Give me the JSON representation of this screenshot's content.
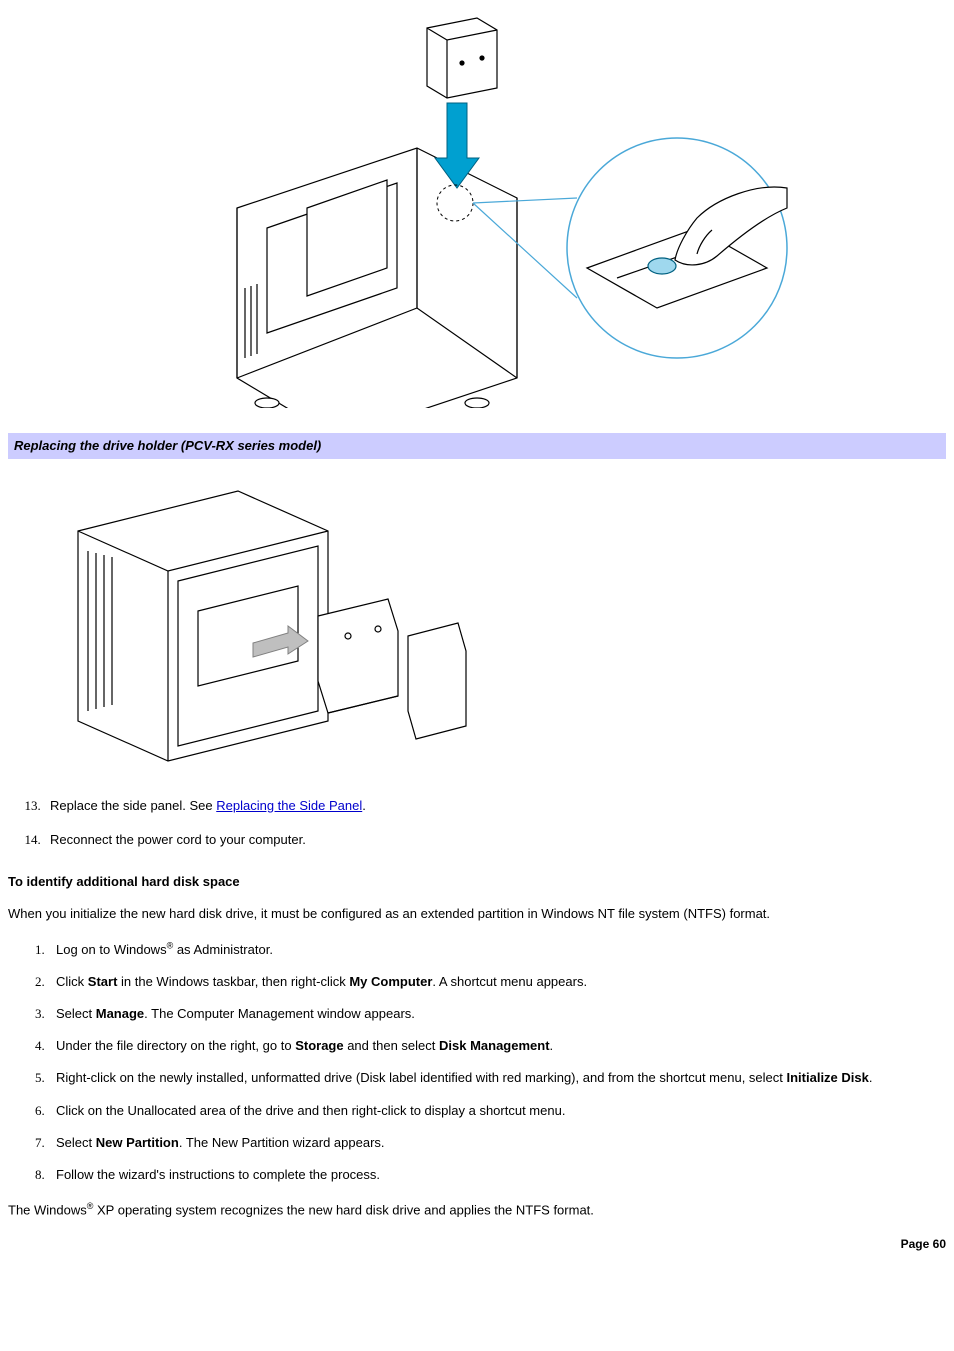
{
  "figure_top": {
    "alt": "Isometric line drawing of a desktop computer with side panel removed. A small drive-holder bracket is shown above the chassis with a blue downward arrow indicating insertion into a dashed-circle target on the top of the case. To the right, a blue-outlined circular callout shows a hand pressing a thumbscrew/tab into place."
  },
  "caption_bar": "Replacing the drive holder (PCV-RX series model)",
  "figure_mid": {
    "alt": "Isometric line drawing of a tower PC case with side panel open. A gray arrow shows a hard-drive bracket with drive sliding horizontally into the drive bay; the detached side panel sits to the right."
  },
  "steps_upper": {
    "start": 13,
    "items": [
      {
        "prefix": "Replace the side panel. See ",
        "link_text": "Replacing the Side Panel",
        "suffix": "."
      },
      {
        "plain": "Reconnect the power cord to your computer."
      }
    ]
  },
  "subhead": "To identify additional hard disk space",
  "intro_para": "When you initialize the new hard disk drive, it must be configured as an extended partition in Windows NT file system (NTFS) format.",
  "steps_lower": {
    "start": 1,
    "items": [
      {
        "html": "Log on to Windows<span class=\"reg\">®</span> as Administrator."
      },
      {
        "html": "Click <b>Start</b> in the Windows taskbar, then right-click <b>My Computer</b>. A shortcut menu appears."
      },
      {
        "html": "Select <b>Manage</b>. The Computer Management window appears."
      },
      {
        "html": "Under the file directory on the right, go to <b>Storage</b> and then select <b>Disk Management</b>."
      },
      {
        "html": "Right-click on the newly installed, unformatted drive (Disk label identified with red marking), and from the shortcut menu, select <b>Initialize Disk</b>."
      },
      {
        "html": "Click on the Unallocated area of the drive and then right-click to display a shortcut menu."
      },
      {
        "html": "Select <b>New Partition</b>. The New Partition wizard appears."
      },
      {
        "html": "Follow the wizard's instructions to complete the process."
      }
    ]
  },
  "closing_para": "The Windows<span class=\"reg\">®</span> XP operating system recognizes the new hard disk drive and applies the NTFS format.",
  "page_label": "Page 60",
  "colors": {
    "caption_bg": "#ccccff",
    "link": "#0000cc",
    "arrow_blue": "#00a0d0",
    "callout_blue": "#4aa8d8",
    "gray_arrow": "#bfbfbf"
  }
}
